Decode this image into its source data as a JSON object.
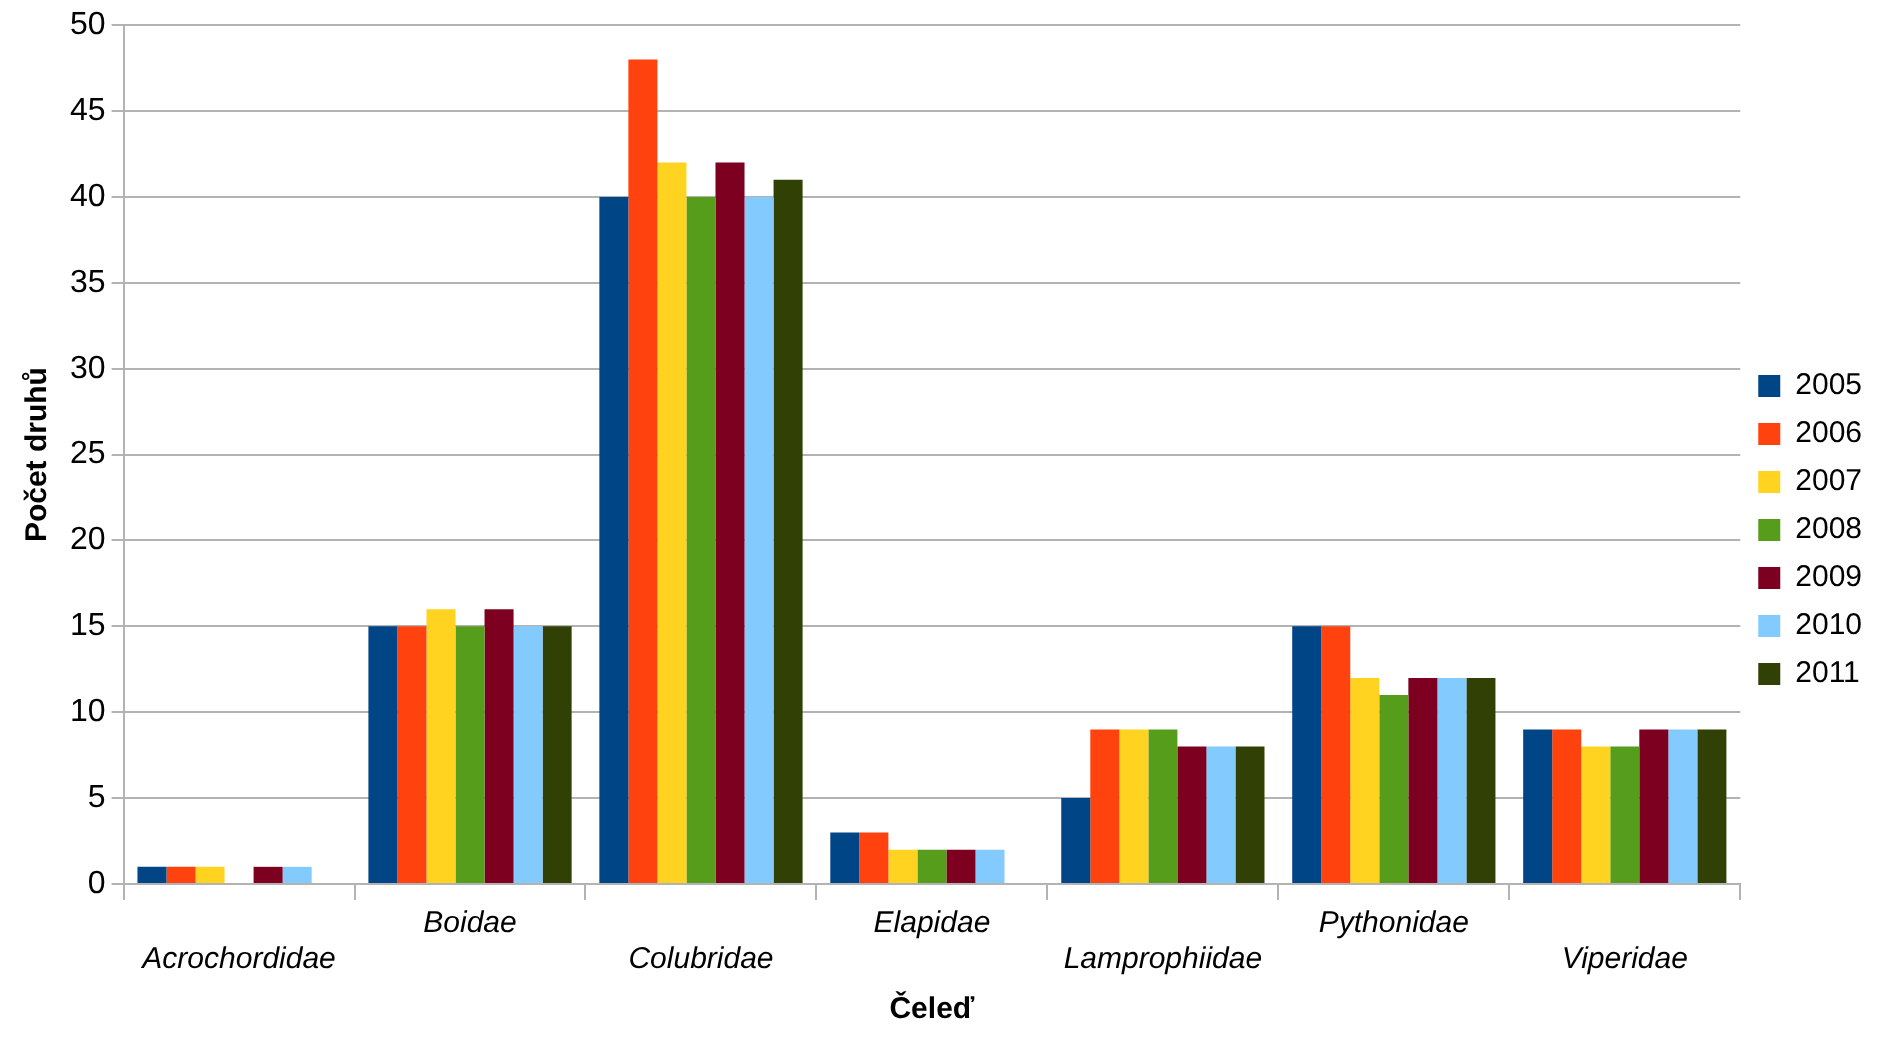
{
  "chart_data": {
    "type": "bar",
    "xlabel": "Čeleď",
    "ylabel": "Počet druhů",
    "categories": [
      "Acrochordidae",
      "Boidae",
      "Colubridae",
      "Elapidae",
      "Lamprophiidae",
      "Pythonidae",
      "Viperidae"
    ],
    "series": [
      {
        "name": "2005",
        "color": "#004586",
        "values": [
          1,
          15,
          40,
          3,
          5,
          15,
          9
        ]
      },
      {
        "name": "2006",
        "color": "#ff420e",
        "values": [
          1,
          15,
          48,
          3,
          9,
          15,
          9
        ]
      },
      {
        "name": "2007",
        "color": "#ffd320",
        "values": [
          1,
          16,
          42,
          2,
          9,
          12,
          8
        ]
      },
      {
        "name": "2008",
        "color": "#579d1c",
        "values": [
          0,
          15,
          40,
          2,
          9,
          11,
          8
        ]
      },
      {
        "name": "2009",
        "color": "#7e0021",
        "values": [
          1,
          16,
          42,
          2,
          8,
          12,
          9
        ]
      },
      {
        "name": "2010",
        "color": "#83caff",
        "values": [
          1,
          15,
          40,
          2,
          8,
          12,
          9
        ]
      },
      {
        "name": "2011",
        "color": "#314004",
        "values": [
          0,
          15,
          41,
          0,
          8,
          12,
          9
        ]
      }
    ],
    "ylim": [
      0,
      50
    ],
    "yticks": [
      0,
      5,
      10,
      15,
      20,
      25,
      30,
      35,
      40,
      45,
      50
    ],
    "grid": "y",
    "legend": "right"
  }
}
